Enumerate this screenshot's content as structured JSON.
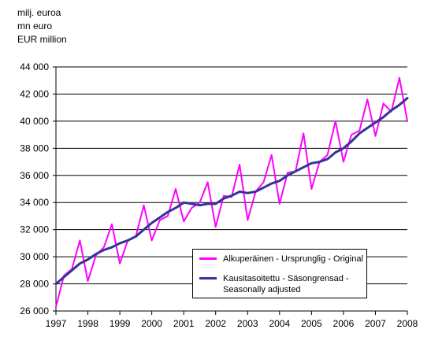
{
  "units": [
    "milj. euroa",
    "mn euro",
    "EUR million"
  ],
  "chart_data": {
    "type": "line",
    "title": "",
    "xlabel": "",
    "ylabel": "milj. euroa / mn euro / EUR million",
    "ylim": [
      26000,
      44000
    ],
    "y_ticks": [
      26000,
      28000,
      30000,
      32000,
      34000,
      36000,
      38000,
      40000,
      42000,
      44000
    ],
    "y_tick_labels": [
      "26 000",
      "28 000",
      "30 000",
      "32 000",
      "34 000",
      "36 000",
      "38 000",
      "40 000",
      "42 000",
      "44 000"
    ],
    "x_tick_labels": [
      "1997",
      "1998",
      "1999",
      "2000",
      "2001",
      "2002",
      "2003",
      "2004",
      "2005",
      "2006",
      "2007",
      "2008"
    ],
    "x_labels": [
      "1997Q1",
      "1997Q2",
      "1997Q3",
      "1997Q4",
      "1998Q1",
      "1998Q2",
      "1998Q3",
      "1998Q4",
      "1999Q1",
      "1999Q2",
      "1999Q3",
      "1999Q4",
      "2000Q1",
      "2000Q2",
      "2000Q3",
      "2000Q4",
      "2001Q1",
      "2001Q2",
      "2001Q3",
      "2001Q4",
      "2002Q1",
      "2002Q2",
      "2002Q3",
      "2002Q4",
      "2003Q1",
      "2003Q2",
      "2003Q3",
      "2003Q4",
      "2004Q1",
      "2004Q2",
      "2004Q3",
      "2004Q4",
      "2005Q1",
      "2005Q2",
      "2005Q3",
      "2005Q4",
      "2006Q1",
      "2006Q2",
      "2006Q3",
      "2006Q4",
      "2007Q1",
      "2007Q2",
      "2007Q3",
      "2007Q4",
      "2008Q1"
    ],
    "grid": "horizontal",
    "legend_position": "bottom-right",
    "series": [
      {
        "name": "Alkuperäinen - Ursprunglig - Original",
        "color": "#ff00ff",
        "values": [
          26300,
          28600,
          29100,
          31200,
          28200,
          30100,
          30700,
          32400,
          29500,
          31200,
          31500,
          33800,
          31200,
          32700,
          33000,
          35000,
          32600,
          33600,
          34000,
          35500,
          32200,
          34500,
          34400,
          36800,
          32700,
          34800,
          35500,
          37500,
          33900,
          36200,
          36300,
          39100,
          35000,
          37000,
          37500,
          40000,
          37000,
          39000,
          39300,
          41600,
          38900,
          41300,
          40700,
          43200,
          40000
        ]
      },
      {
        "name": "Kausitasoitettu - Säsongrensad - Seasonally adjusted",
        "color": "#333399",
        "values": [
          28000,
          28500,
          29000,
          29500,
          29800,
          30200,
          30500,
          30700,
          31000,
          31200,
          31500,
          32000,
          32500,
          32900,
          33300,
          33600,
          34000,
          33900,
          33800,
          33900,
          33900,
          34300,
          34500,
          34800,
          34700,
          34800,
          35100,
          35400,
          35600,
          36000,
          36300,
          36600,
          36900,
          37000,
          37200,
          37700,
          38000,
          38500,
          39100,
          39500,
          39900,
          40300,
          40800,
          41200,
          41700
        ]
      }
    ]
  }
}
